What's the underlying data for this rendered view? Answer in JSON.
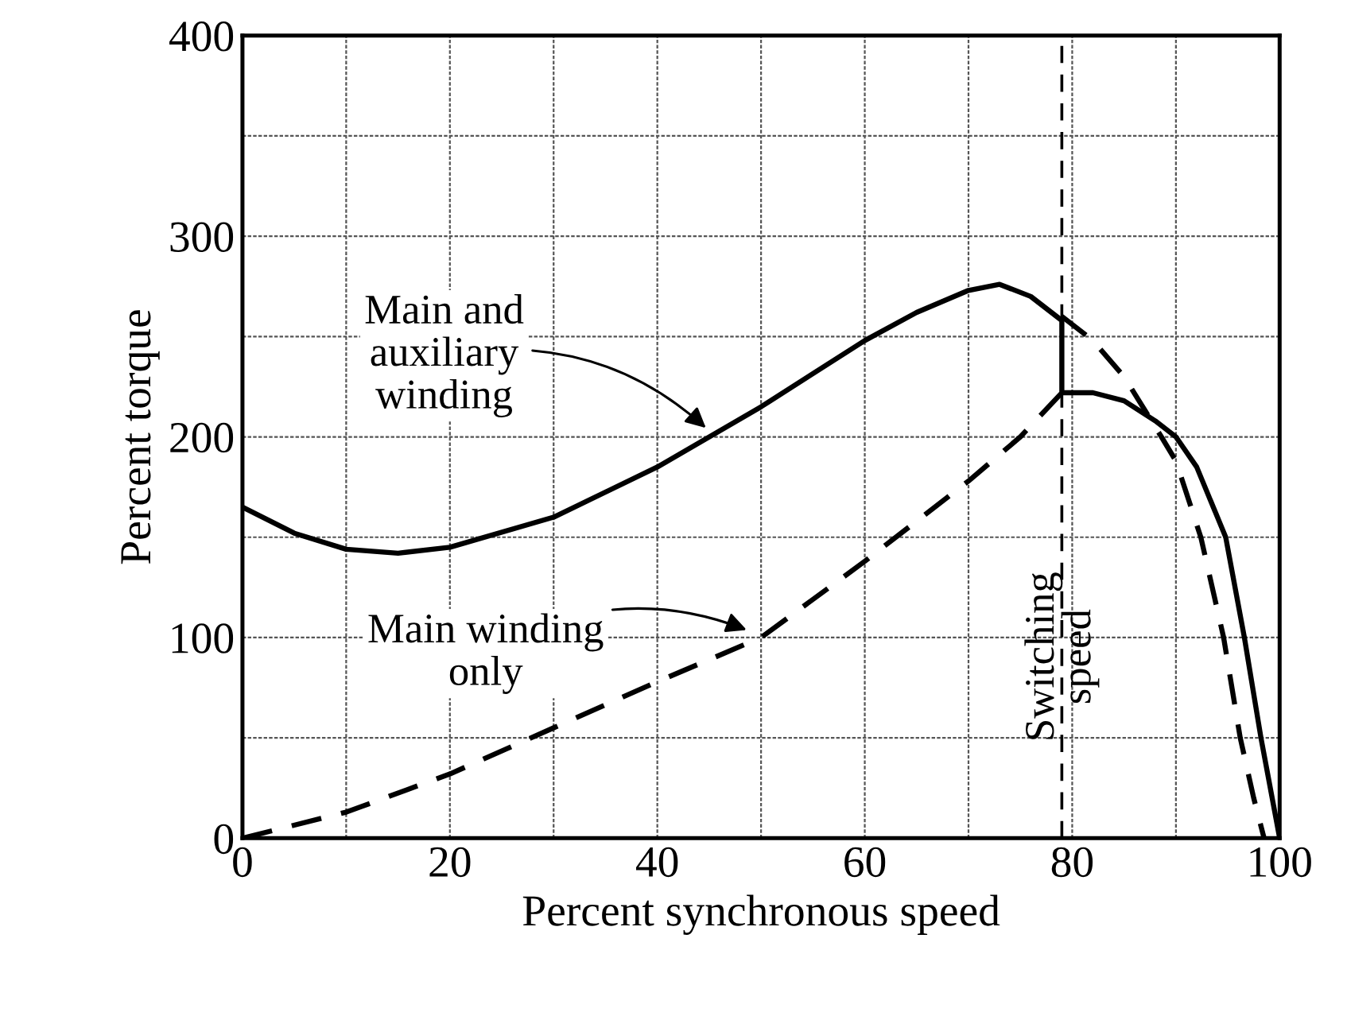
{
  "chart_data": {
    "type": "line",
    "xlabel": "Percent synchronous speed",
    "ylabel": "Percent torque",
    "xlim": [
      0,
      100
    ],
    "ylim": [
      0,
      400
    ],
    "xticks": [
      0,
      {
        "value": 10,
        "label": null
      },
      20,
      {
        "value": 30,
        "label": null
      },
      40,
      {
        "value": 50,
        "label": null
      },
      60,
      {
        "value": 70,
        "label": null
      },
      80,
      {
        "value": 90,
        "label": null
      },
      100
    ],
    "yticks": [
      0,
      {
        "value": 50,
        "label": null
      },
      100,
      {
        "value": 150,
        "label": null
      },
      200,
      {
        "value": 250,
        "label": null
      },
      300,
      {
        "value": 350,
        "label": null
      },
      400
    ],
    "grid": true,
    "legend": false,
    "marker": "none",
    "series": [
      {
        "color": "#000000",
        "line_style": "solid",
        "x": [
          0,
          5,
          10,
          15,
          20,
          30,
          40,
          50,
          60,
          65,
          70,
          73,
          76,
          79,
          79,
          82,
          85,
          88,
          90,
          92,
          94.8,
          96.6,
          98.2,
          100
        ],
        "values": [
          165,
          152,
          144,
          142,
          145,
          160,
          185,
          215,
          248,
          262,
          273,
          276,
          270,
          258,
          222,
          222,
          218,
          208,
          200,
          185,
          150,
          100,
          50,
          0
        ]
      },
      {
        "color": "#000000",
        "line_style": "dashed",
        "x": [
          0,
          10,
          20,
          30,
          40,
          50,
          60,
          65,
          70,
          75,
          79
        ],
        "values": [
          0,
          13,
          32,
          55,
          78,
          100,
          138,
          158,
          178,
          200,
          222
        ]
      },
      {
        "color": "#000000",
        "line_style": "dashed",
        "x": [
          79,
          82,
          85,
          88.6,
          90,
          92.4,
          94.6,
          96.2,
          97.5,
          98.5
        ],
        "values": [
          260,
          248,
          230,
          200,
          188,
          150,
          100,
          50,
          20,
          0
        ]
      }
    ],
    "ref_lines": [
      {
        "axis": "x",
        "value": 79,
        "label": "Switching\nspeed",
        "line_style": "dashed",
        "color": "#000000"
      }
    ],
    "annotations": [
      {
        "text": "Main and\nauxiliary\nwinding",
        "x": 45,
        "y": 203
      },
      {
        "text": "Main winding\nonly",
        "x": 49,
        "y": 103
      }
    ]
  }
}
